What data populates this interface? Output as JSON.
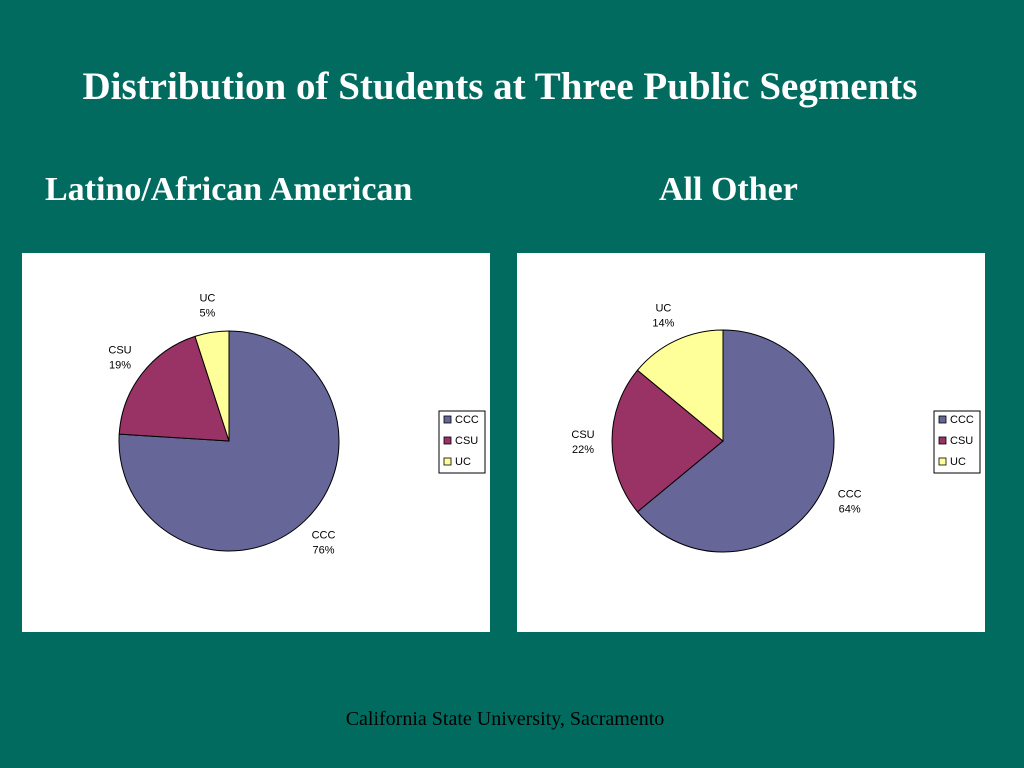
{
  "slide": {
    "title": "Distribution of Students at Three Public Segments",
    "footer": "California State University, Sacramento"
  },
  "colors": {
    "background": "#006b5e",
    "CCC": "#666699",
    "CSU": "#993366",
    "UC": "#ffff99"
  },
  "chart_data": [
    {
      "type": "pie",
      "title": "Latino/African American",
      "slices": [
        {
          "label": "CCC",
          "value": 76,
          "value_label": "76%"
        },
        {
          "label": "CSU",
          "value": 19,
          "value_label": "19%"
        },
        {
          "label": "UC",
          "value": 5,
          "value_label": "5%"
        }
      ],
      "legend": [
        "CCC",
        "CSU",
        "UC"
      ],
      "legend_position": "right"
    },
    {
      "type": "pie",
      "title": "All Other",
      "slices": [
        {
          "label": "CCC",
          "value": 64,
          "value_label": "64%"
        },
        {
          "label": "CSU",
          "value": 22,
          "value_label": "22%"
        },
        {
          "label": "UC",
          "value": 14,
          "value_label": "14%"
        }
      ],
      "legend": [
        "CCC",
        "CSU",
        "UC"
      ],
      "legend_position": "right"
    }
  ]
}
